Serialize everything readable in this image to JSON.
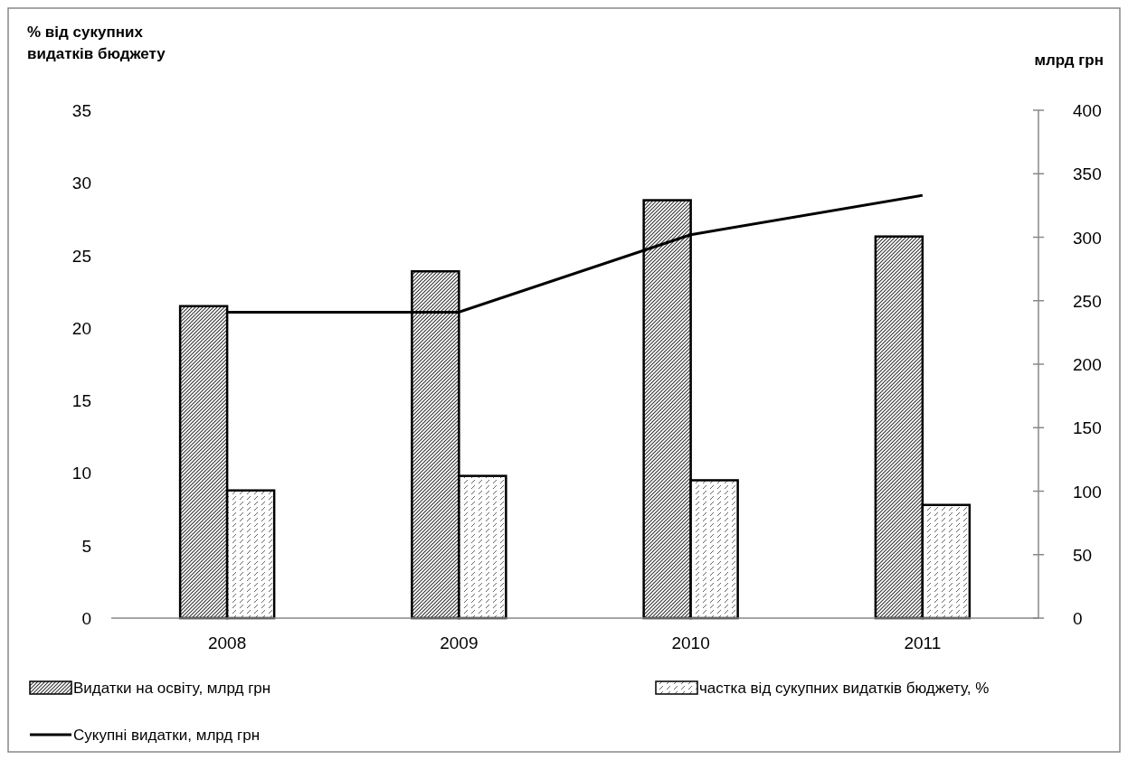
{
  "chart_data": {
    "type": "bar",
    "ylabel": "% від сукупних видатків бюджету",
    "y2label": "млрд грн",
    "categories": [
      "2008",
      "2009",
      "2010",
      "2011"
    ],
    "series": [
      {
        "name": "Видатки на освіту, млрд грн",
        "color": "#000000",
        "values": [
          21.5,
          23.9,
          28.8,
          26.3
        ]
      },
      {
        "name": "частка від сукупних видатків бюджету, %",
        "color": "#000000",
        "values": [
          8.8,
          9.8,
          9.5,
          7.8
        ]
      },
      {
        "name": "Сукупні видатки, млрд грн",
        "type": "line",
        "axis": "y2",
        "color": "#000000",
        "values": [
          241,
          241,
          302,
          333
        ]
      }
    ],
    "ylim": [
      0,
      35
    ],
    "yticks": [
      0,
      5,
      10,
      15,
      20,
      25,
      30,
      35
    ],
    "y2lim": [
      0,
      400
    ],
    "y2ticks": [
      0,
      50,
      100,
      150,
      200,
      250,
      300,
      350,
      400
    ],
    "legend": "bottom",
    "grid": false,
    "marker": "none",
    "line_style": "solid"
  }
}
